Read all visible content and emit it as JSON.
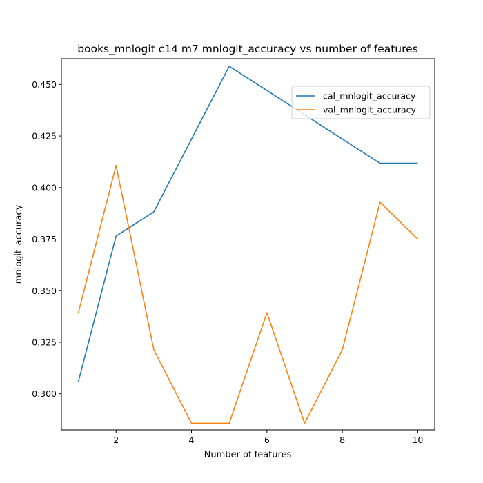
{
  "chart_data": {
    "type": "line",
    "title": "books_mnlogit c14 m7 mnlogit_accuracy vs number of features",
    "xlabel": "Number of features",
    "ylabel": "mnlogit_accuracy",
    "x": [
      1,
      2,
      3,
      4,
      5,
      6,
      7,
      8,
      9,
      10
    ],
    "xlim": [
      0.55,
      10.45
    ],
    "ylim": [
      0.2825,
      0.4625
    ],
    "xticks": [
      2,
      4,
      6,
      8,
      10
    ],
    "yticks": [
      0.3,
      0.325,
      0.35,
      0.375,
      0.4,
      0.425,
      0.45
    ],
    "xtick_labels": [
      "2",
      "4",
      "6",
      "8",
      "10"
    ],
    "ytick_labels": [
      "0.300",
      "0.325",
      "0.350",
      "0.375",
      "0.400",
      "0.425",
      "0.450"
    ],
    "grid": false,
    "legend_position": "upper-right",
    "series": [
      {
        "name": "cal_mnlogit_accuracy",
        "color": "#1f77b4",
        "values": [
          0.3059,
          0.3765,
          0.3882,
          0.4235,
          0.4588,
          0.4471,
          0.4353,
          0.4235,
          0.4118,
          0.4118
        ]
      },
      {
        "name": "val_mnlogit_accuracy",
        "color": "#ff7f0e",
        "values": [
          0.3393,
          0.4107,
          0.3214,
          0.2857,
          0.2857,
          0.3393,
          0.2857,
          0.3214,
          0.3929,
          0.375
        ]
      }
    ]
  }
}
